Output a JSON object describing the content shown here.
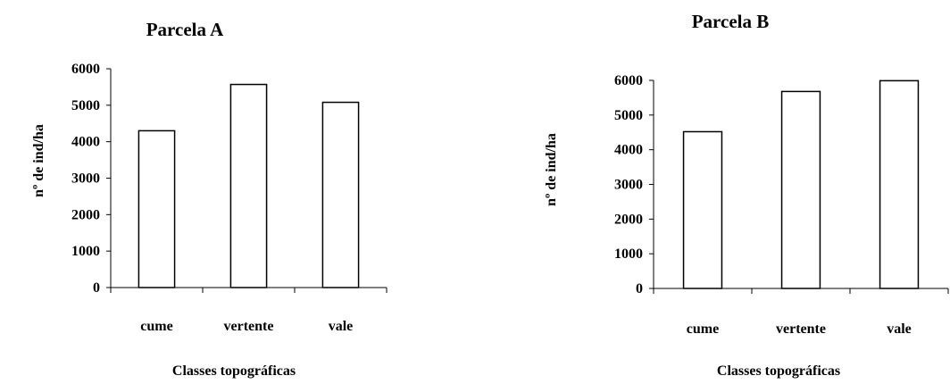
{
  "chart_data": [
    {
      "type": "bar",
      "title": "Parcela A",
      "categories": [
        "cume",
        "vertente",
        "vale"
      ],
      "values": [
        4300,
        5570,
        5080
      ],
      "xlabel": "Classes topográficas",
      "ylabel": "nº de ind/ha",
      "ylim": [
        0,
        6000
      ],
      "yticks": [
        "0",
        "1000",
        "2000",
        "3000",
        "4000",
        "5000",
        "6000"
      ],
      "grid": false,
      "bar_fill": "#ffffff",
      "bar_stroke": "#000000"
    },
    {
      "type": "bar",
      "title": "Parcela B",
      "categories": [
        "cume",
        "vertente",
        "vale"
      ],
      "values": [
        4520,
        5680,
        5990
      ],
      "xlabel": "Classes topográficas",
      "ylabel": "nº de ind/ha",
      "ylim": [
        0,
        6000
      ],
      "yticks": [
        "0",
        "1000",
        "2000",
        "3000",
        "4000",
        "5000",
        "6000"
      ],
      "grid": false,
      "bar_fill": "#ffffff",
      "bar_stroke": "#000000"
    }
  ]
}
